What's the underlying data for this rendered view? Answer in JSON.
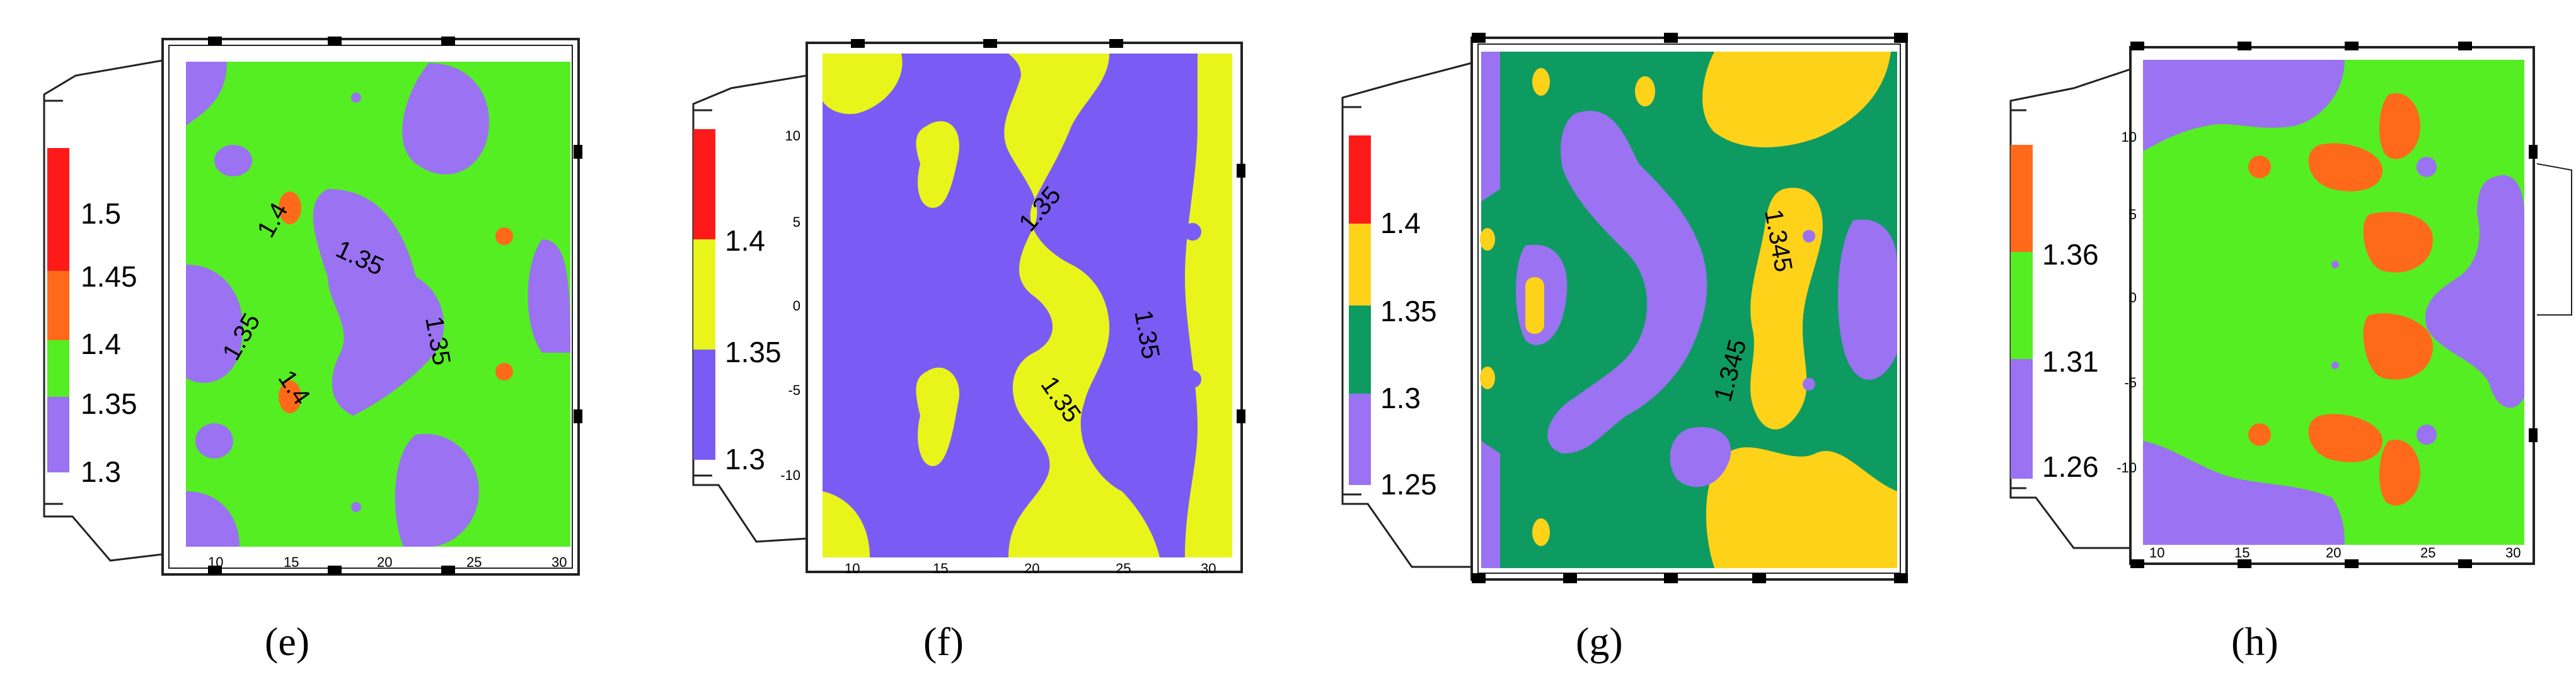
{
  "colors": {
    "red": "#ff1a1a",
    "orange": "#ff6a1a",
    "green": "#55ee22",
    "purple": "#9a72f2",
    "violet": "#7a5cf4",
    "yellow": "#e9f51a",
    "gold": "#ffd21a",
    "teal": "#0e9b62"
  },
  "chart_data": [
    {
      "type": "heatmap",
      "panel_label": "(e)",
      "legend": {
        "bands": [
          "red",
          "orange",
          "green",
          "purple"
        ],
        "labels": [
          "1.5",
          "1.45",
          "1.4",
          "1.35",
          "1.3"
        ]
      },
      "x_ticks": [
        "10",
        "15",
        "20",
        "25",
        "30"
      ],
      "y_ticks": [],
      "contour_labels": [
        "1.4",
        "1.35",
        "1.35",
        "1.35",
        "1.4"
      ],
      "base_color": "green",
      "blobs": []
    },
    {
      "type": "heatmap",
      "panel_label": "(f)",
      "legend": {
        "bands": [
          "red",
          "yellow",
          "violet"
        ],
        "labels": [
          "1.4",
          "1.35",
          "1.3"
        ]
      },
      "x_ticks": [
        "10",
        "15",
        "20",
        "25",
        "30"
      ],
      "y_ticks": [
        "10",
        "5",
        "0",
        "-5",
        "-10"
      ],
      "contour_labels": [
        "1.35",
        "1.35",
        "1.35"
      ],
      "base_color": "violet",
      "blobs": []
    },
    {
      "type": "heatmap",
      "panel_label": "(g)",
      "legend": {
        "bands": [
          "red",
          "gold",
          "teal",
          "purple"
        ],
        "labels": [
          "1.4",
          "1.35",
          "1.3",
          "1.25"
        ]
      },
      "x_ticks": [],
      "y_ticks": [],
      "contour_labels": [
        "1.345",
        "1.345"
      ],
      "base_color": "teal",
      "blobs": []
    },
    {
      "type": "heatmap",
      "panel_label": "(h)",
      "legend": {
        "bands": [
          "orange",
          "green",
          "purple"
        ],
        "labels": [
          "1.36",
          "1.31",
          "1.26"
        ]
      },
      "x_ticks": [
        "10",
        "15",
        "20",
        "25",
        "30"
      ],
      "y_ticks": [
        "10",
        "5",
        "0",
        "-5",
        "-10"
      ],
      "contour_labels": [],
      "base_color": "green",
      "blobs": []
    }
  ]
}
